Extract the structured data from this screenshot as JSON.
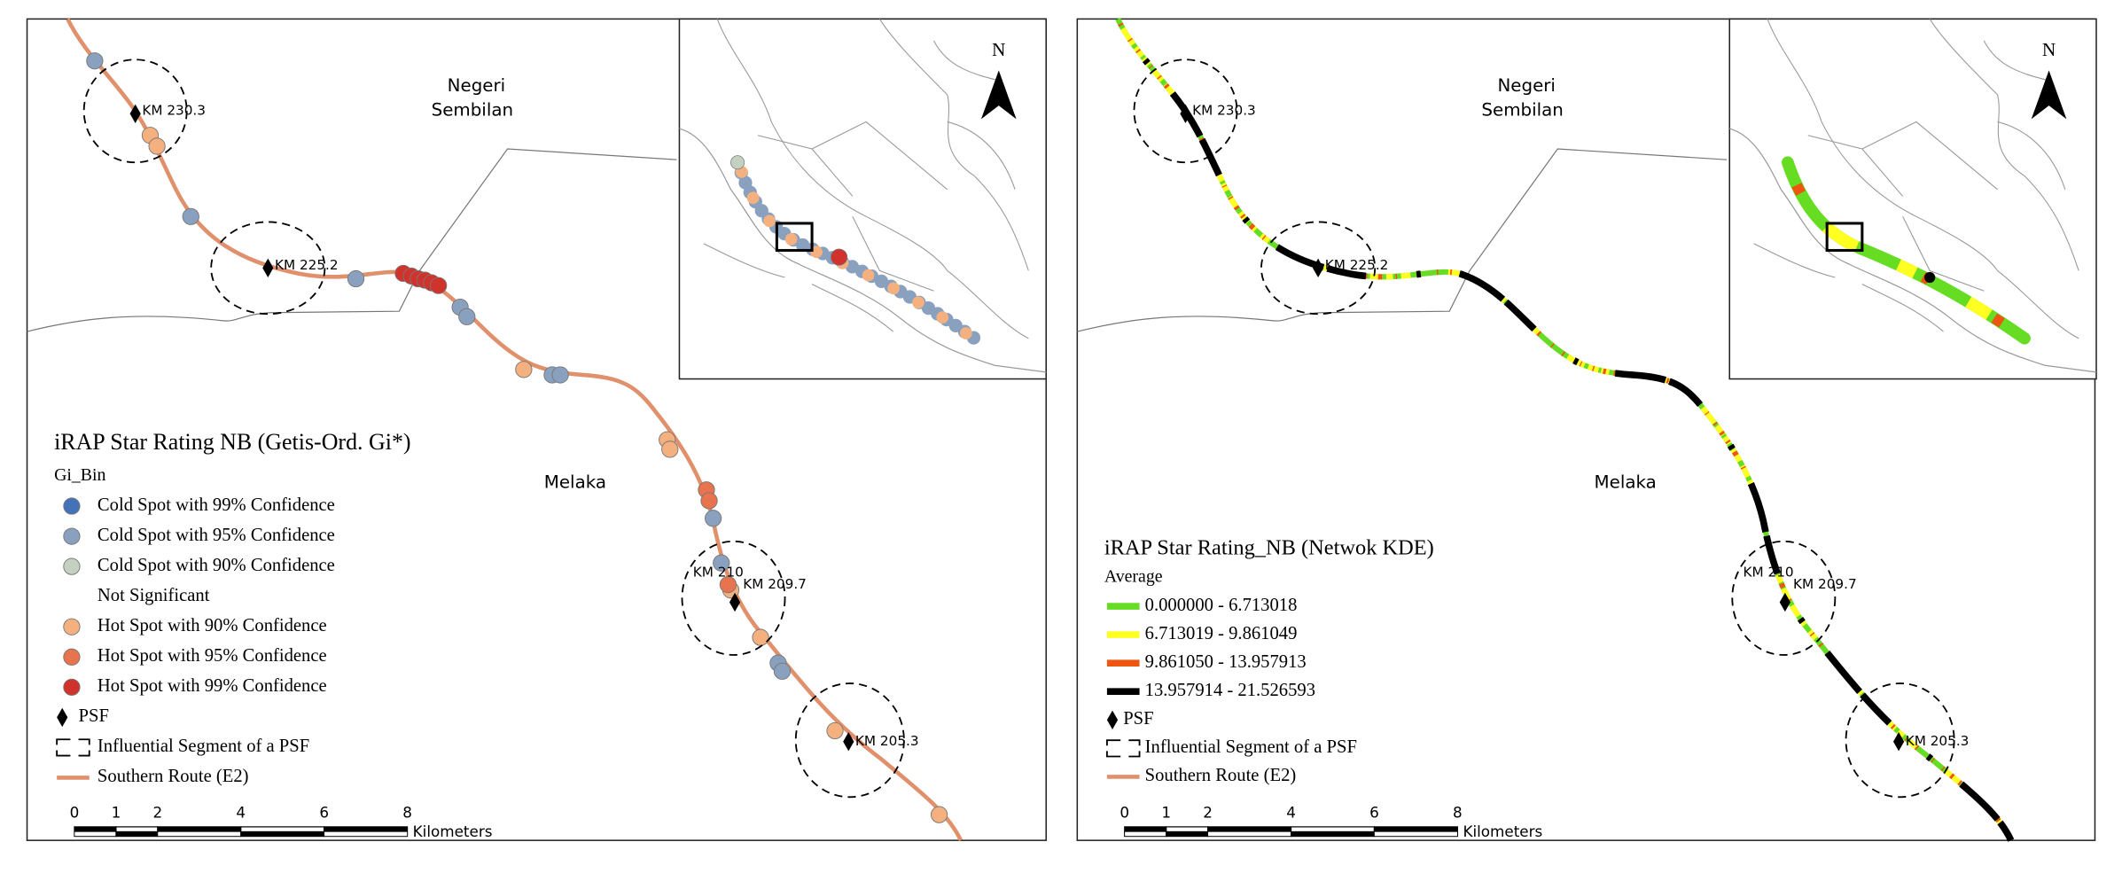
{
  "panels": [
    {
      "region_labels": {
        "north": [
          "Negeri",
          "Sembilan"
        ],
        "south": "Melaka"
      },
      "psf_labels": [
        "KM 230.3",
        "KM 225.2",
        "KM 210",
        "KM 209.7",
        "KM 205.3"
      ],
      "north_arrow": "N",
      "legend": {
        "title": "iRAP Star Rating NB (Getis-Ord. Gi*)",
        "subtitle": "Gi_Bin",
        "classes": [
          {
            "label": "Cold Spot with 99% Confidence",
            "color": "#4472b8"
          },
          {
            "label": "Cold Spot with 95% Confidence",
            "color": "#8aa0bf"
          },
          {
            "label": "Cold Spot with 90% Confidence",
            "color": "#c5d1c0"
          },
          {
            "label": "Not Significant"
          },
          {
            "label": "Hot Spot with 90% Confidence",
            "color": "#f4b07f"
          },
          {
            "label": "Hot Spot with 95% Confidence",
            "color": "#e8734f"
          },
          {
            "label": "Hot Spot with 99% Confidence",
            "color": "#d0332b"
          }
        ],
        "psf": "PSF",
        "segment": "Influential Segment of a PSF",
        "route": {
          "label": "Southern Route (E2)",
          "color": "#e0906a"
        }
      },
      "scale": {
        "ticks": [
          0,
          1,
          2,
          4,
          6,
          8
        ],
        "unit": "Kilometers"
      }
    },
    {
      "region_labels": {
        "north": [
          "Negeri",
          "Sembilan"
        ],
        "south": "Melaka"
      },
      "psf_labels": [
        "KM 230.3",
        "KM 225.2",
        "KM 210",
        "KM 209.7",
        "KM 205.3"
      ],
      "north_arrow": "N",
      "legend": {
        "title": "iRAP Star Rating_NB (Netwok KDE)",
        "subtitle": "Average",
        "classes": [
          {
            "label": "0.000000 - 6.713018",
            "color": "#66dd22"
          },
          {
            "label": "6.713019 - 9.861049",
            "color": "#ffff22"
          },
          {
            "label": "9.861050 - 13.957913",
            "color": "#ee5511"
          },
          {
            "label": "13.957914 - 21.526593",
            "color": "#000000"
          }
        ],
        "psf": "PSF",
        "segment": "Influential Segment of a PSF",
        "route": {
          "label": "Southern Route (E2)",
          "color": "#e0906a"
        }
      },
      "scale": {
        "ticks": [
          0,
          1,
          2,
          4,
          6,
          8
        ],
        "unit": "Kilometers"
      }
    }
  ]
}
